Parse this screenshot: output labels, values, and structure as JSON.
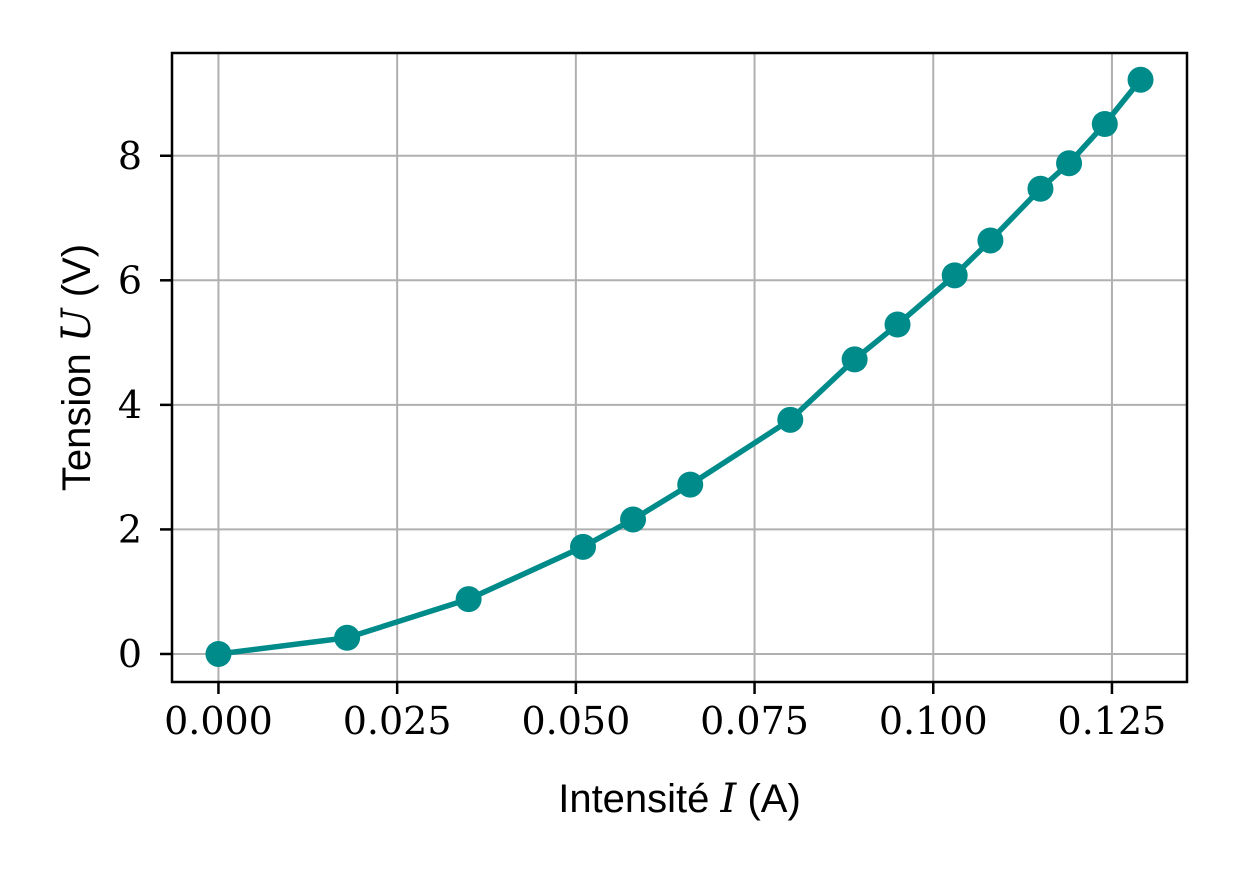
{
  "chart_data": {
    "type": "line",
    "title": "",
    "xlabel": "Intensité I (A)",
    "xlabel_parts": {
      "before": "Intensité ",
      "math": "I",
      "after": " (A)"
    },
    "ylabel": "Tension U (V)",
    "ylabel_parts": {
      "before": "Tension ",
      "math": "U",
      "after": " (V)"
    },
    "xlim": [
      -0.0065,
      0.1355
    ],
    "ylim": [
      -0.45,
      9.65
    ],
    "xticks": [
      0.0,
      0.025,
      0.05,
      0.075,
      0.1,
      0.125
    ],
    "xtick_labels": [
      "0.000",
      "0.025",
      "0.050",
      "0.075",
      "0.100",
      "0.125"
    ],
    "yticks": [
      0,
      2,
      4,
      6,
      8
    ],
    "ytick_labels": [
      "0",
      "2",
      "4",
      "6",
      "8"
    ],
    "grid": true,
    "legend": "none",
    "series": [
      {
        "color": "#008b8b",
        "marker": "circle",
        "x": [
          0.0,
          0.018,
          0.035,
          0.051,
          0.058,
          0.066,
          0.08,
          0.089,
          0.095,
          0.103,
          0.108,
          0.115,
          0.119,
          0.124,
          0.129
        ],
        "y": [
          0.0,
          0.26,
          0.88,
          1.72,
          2.16,
          2.72,
          3.76,
          4.73,
          5.29,
          6.08,
          6.64,
          7.47,
          7.88,
          8.51,
          9.22
        ]
      }
    ]
  }
}
